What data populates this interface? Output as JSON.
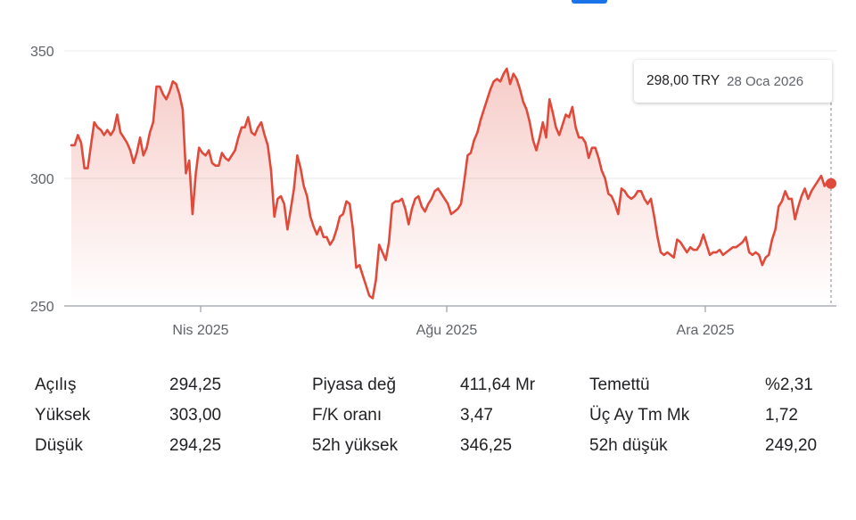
{
  "chart_data": {
    "type": "line",
    "ylim": [
      250,
      350
    ],
    "y_ticks": [
      "350",
      "300",
      "250"
    ],
    "x_ticks": [
      "Nis 2025",
      "Ağu 2025",
      "Ara 2025"
    ],
    "line_color": "#e04a3b",
    "fill_color": "#e04a3b",
    "series": [
      {
        "values": [
          313,
          313,
          317,
          314,
          304,
          304,
          313,
          322,
          320,
          319,
          317,
          319,
          317,
          319,
          325,
          318,
          316,
          314,
          311,
          306,
          310,
          316,
          309,
          312,
          318,
          322,
          336,
          336,
          333,
          331,
          334,
          338,
          337,
          333,
          327,
          302,
          307,
          286,
          302,
          312,
          310,
          309,
          311,
          306,
          305,
          305,
          310,
          308,
          307,
          309,
          311,
          316,
          320,
          320,
          324,
          318,
          317,
          320,
          322,
          317,
          313,
          303,
          285,
          292,
          293,
          290,
          280,
          288,
          296,
          309,
          304,
          297,
          293,
          285,
          281,
          278,
          281,
          277,
          277,
          274,
          276,
          280,
          285,
          286,
          291,
          290,
          280,
          265,
          266,
          262,
          258,
          254,
          253,
          260,
          274,
          271,
          268,
          275,
          290,
          291,
          291,
          292,
          288,
          282,
          288,
          292,
          293,
          289,
          287,
          290,
          292,
          295,
          296,
          294,
          292,
          290,
          286,
          287,
          288,
          290,
          299,
          309,
          310,
          315,
          318,
          323,
          327,
          331,
          335,
          338,
          339,
          338,
          341,
          343,
          337,
          341,
          339,
          335,
          330,
          327,
          322,
          315,
          311,
          316,
          322,
          316,
          331,
          326,
          320,
          317,
          321,
          325,
          324,
          328,
          320,
          316,
          316,
          314,
          308,
          312,
          312,
          308,
          303,
          300,
          294,
          293,
          290,
          286,
          296,
          295,
          293,
          292,
          293,
          295,
          295,
          292,
          290,
          292,
          285,
          277,
          271,
          270,
          271,
          270,
          269,
          276,
          275,
          273,
          271,
          273,
          272,
          272,
          274,
          278,
          274,
          270,
          271,
          271,
          272,
          270,
          271,
          272,
          273,
          273,
          274,
          275,
          277,
          271,
          270,
          271,
          270,
          266,
          269,
          270,
          276,
          280,
          289,
          291,
          295,
          292,
          292,
          284,
          289,
          293,
          296,
          292,
          295,
          297,
          299,
          301,
          297,
          299,
          298
        ]
      }
    ]
  },
  "tooltip": {
    "price": "298,00 TRY",
    "date": "28 Oca 2026"
  },
  "stats": [
    [
      {
        "label": "Açılış",
        "value": "294,25"
      },
      {
        "label": "Piyasa değ",
        "value": "411,64 Mr"
      },
      {
        "label": "Temettü",
        "value": "%2,31"
      }
    ],
    [
      {
        "label": "Yüksek",
        "value": "303,00"
      },
      {
        "label": "F/K oranı",
        "value": "3,47"
      },
      {
        "label": "Üç Ay Tm Mk",
        "value": "1,72"
      }
    ],
    [
      {
        "label": "Düşük",
        "value": "294,25"
      },
      {
        "label": "52h yüksek",
        "value": "346,25"
      },
      {
        "label": "52h düşük",
        "value": "249,20"
      }
    ]
  ]
}
